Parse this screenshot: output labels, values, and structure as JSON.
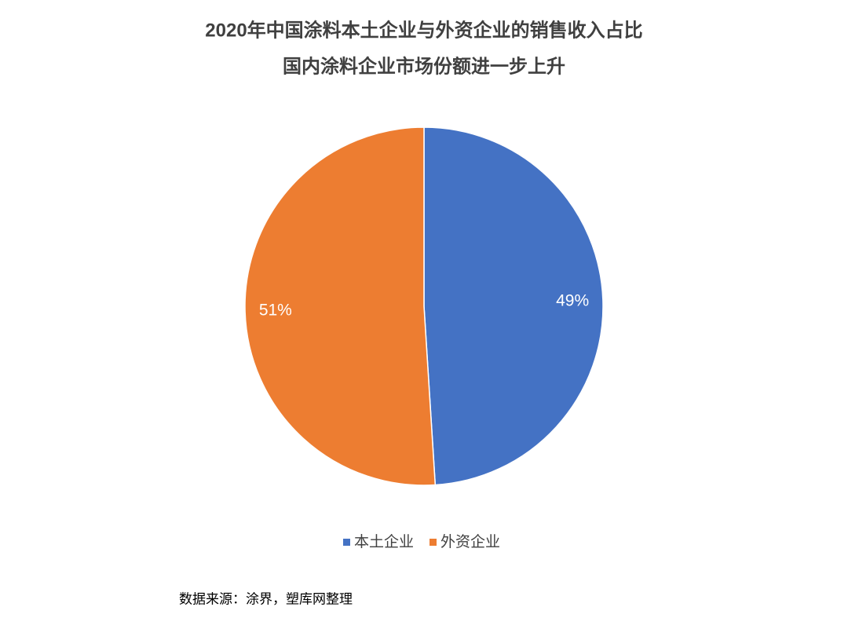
{
  "chart_data": {
    "type": "pie",
    "title": "2020年中国涂料本土企业与外资企业的销售收入占比",
    "subtitle": "国内涂料企业市场份额进一步上升",
    "categories": [
      "本土企业",
      "外资企业"
    ],
    "values": [
      49,
      51
    ],
    "value_labels": [
      "49%",
      "51%"
    ],
    "colors": [
      "#4472c4",
      "#ed7d31"
    ],
    "source": "数据来源：涂界，塑库网整理"
  }
}
